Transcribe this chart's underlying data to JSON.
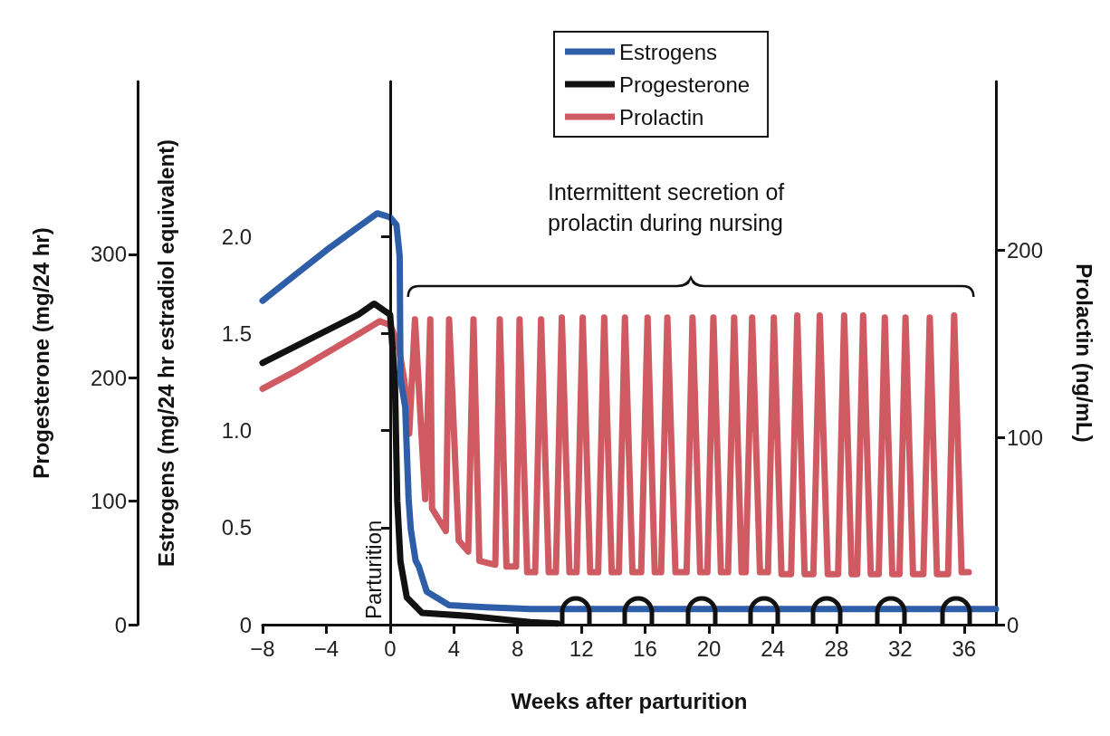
{
  "chart_data": {
    "type": "line",
    "xlabel": "Weeks after parturition",
    "ylabel": "Estrogens (mg/24 hr estradiol equivalent)",
    "y2label": "Prolactin (ng/mL)",
    "y3label": "Progesterone (mg/24 hr)",
    "xlim": [
      -8,
      38
    ],
    "xticks": [
      {
        "value": -8,
        "label": "−8"
      },
      {
        "value": -4,
        "label": "−4"
      },
      0,
      4,
      8,
      12,
      16,
      20,
      24,
      28,
      32,
      36
    ],
    "ylim": [
      0,
      2.8
    ],
    "yticks": [
      0,
      0.5,
      {
        "value": 1,
        "label": "1.0"
      },
      1.5,
      {
        "value": 2,
        "label": "2.0"
      }
    ],
    "y2lim": [
      0,
      290
    ],
    "y2ticks": [
      0,
      100,
      200
    ],
    "y3lim": [
      0,
      440
    ],
    "y3ticks": [
      0,
      100,
      200,
      300
    ],
    "grid": false,
    "legend": "top",
    "marker": "none",
    "ref_lines": [
      {
        "axis": "x",
        "value": 0,
        "label": "Parturition",
        "color": "#111111"
      }
    ],
    "annotations": [
      "Intermittent secretion of prolactin during nursing"
    ],
    "series": [
      {
        "name": "Estrogens",
        "color": "#2f5ea8",
        "x": [
          -8,
          -6,
          -4,
          -2,
          -0.8,
          0,
          0.4,
          0.6,
          0.65,
          0.95,
          1.16,
          1.3,
          1.6,
          1.8,
          2.3,
          3.7,
          6,
          8.8,
          20,
          38
        ],
        "values": [
          1.67,
          1.8,
          1.93,
          2.05,
          2.12,
          2.1,
          2.06,
          1.9,
          1.27,
          1.12,
          0.65,
          0.49,
          0.33,
          0.3,
          0.17,
          0.1,
          0.09,
          0.08,
          0.08,
          0.08
        ]
      },
      {
        "name": "Progesterone",
        "color": "#111111",
        "axis": "y3",
        "x": [
          -8,
          -6,
          -4,
          -2,
          -1,
          0,
          0.3,
          0.45,
          0.65,
          1.05,
          2,
          5,
          8.8,
          10.5
        ],
        "values": [
          212,
          225,
          238,
          251,
          260,
          251,
          198,
          100,
          51,
          22,
          9.5,
          7,
          2,
          1
        ]
      },
      {
        "name": "Prolactin",
        "color": "#d05a62",
        "axis": "y2",
        "x": [
          -8,
          -6,
          -4,
          -2,
          -0.65,
          0,
          0.5,
          0.9,
          1.2,
          1.56,
          2.2,
          2.52,
          2.63,
          3.5,
          3.7,
          4.3,
          4.9,
          5.23,
          5.6,
          6.6,
          6.88,
          7.3,
          7.9,
          8.12,
          8.6,
          9.1,
          9.47,
          9.95,
          10.4,
          10.77,
          11.25,
          11.7,
          12.08,
          12.55,
          13.05,
          13.43,
          13.9,
          14.35,
          14.73,
          15.2,
          15.75,
          16.15,
          16.6,
          17.0,
          17.39,
          17.9,
          18.6,
          18.97,
          19.45,
          19.9,
          20.28,
          20.75,
          21.2,
          21.58,
          22.05,
          22.3,
          22.71,
          23.2,
          23.7,
          24.07,
          24.55,
          25.15,
          25.54,
          26.0,
          26.55,
          26.95,
          27.45,
          28.1,
          28.48,
          28.95,
          29.3,
          29.67,
          30.15,
          30.65,
          31.03,
          31.5,
          31.95,
          32.33,
          32.8,
          33.45,
          33.85,
          34.3,
          35.0,
          35.38,
          35.85,
          36.3
        ],
        "values": [
          126,
          135,
          145,
          155,
          162,
          160,
          150,
          130,
          102,
          163,
          67,
          163,
          62,
          50,
          163,
          45,
          39,
          163,
          34,
          32,
          163,
          31,
          31,
          163,
          28,
          28,
          163,
          28,
          28,
          164,
          28,
          28,
          164,
          28,
          28,
          164,
          28,
          28,
          164,
          28,
          28,
          164,
          28,
          28,
          164,
          28,
          28,
          164,
          28,
          28,
          164,
          28,
          28,
          164,
          28,
          28,
          164,
          28,
          28,
          164,
          27,
          27,
          165,
          27,
          27,
          165,
          27,
          27,
          165,
          27,
          27,
          165,
          27,
          27,
          164,
          27,
          27,
          164,
          27,
          27,
          164,
          27,
          27,
          165,
          28,
          28
        ]
      }
    ]
  }
}
